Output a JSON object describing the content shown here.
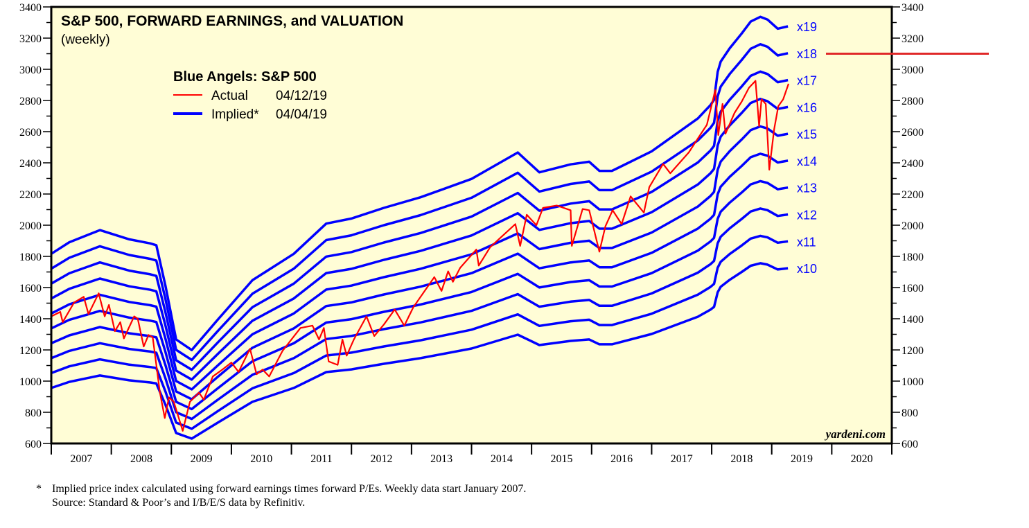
{
  "chart_data": {
    "type": "line",
    "title": "S&P 500, FORWARD EARNINGS, and VALUATION",
    "subtitle": "(weekly)",
    "legend": {
      "title": "Blue Angels: S&P 500",
      "placement": "top-left",
      "entries": [
        {
          "label": "Actual",
          "date": "04/12/19",
          "color": "#FF0000"
        },
        {
          "label": "Implied*",
          "date": "04/04/19",
          "color": "#0000FF"
        }
      ]
    },
    "x_tick_labels": [
      "2007",
      "2008",
      "2009",
      "2010",
      "2011",
      "2012",
      "2013",
      "2014",
      "2015",
      "2016",
      "2017",
      "2018",
      "2019",
      "2020"
    ],
    "xlim": [
      2007,
      2021
    ],
    "ylim": [
      600,
      3400
    ],
    "y_ticks": [
      600,
      800,
      1000,
      1200,
      1400,
      1600,
      1800,
      2000,
      2200,
      2400,
      2600,
      2800,
      3000,
      3200,
      3400
    ],
    "y_ticks_right": true,
    "grid": false,
    "implied": {
      "multiples": [
        10,
        11,
        12,
        13,
        14,
        15,
        16,
        17,
        18,
        19
      ],
      "multiple_labels": [
        "x10",
        "x11",
        "x12",
        "x13",
        "x14",
        "x15",
        "x16",
        "x17",
        "x18",
        "x19"
      ],
      "color": "#0000FF",
      "forward_earnings": {
        "x": [
          2007.0,
          2007.3,
          2007.81,
          2008.3,
          2008.65,
          2008.75,
          2008.9,
          2009.08,
          2009.34,
          2009.77,
          2010.35,
          2011.04,
          2011.58,
          2012.0,
          2012.54,
          2013.15,
          2014.0,
          2014.77,
          2015.13,
          2015.65,
          2015.96,
          2016.13,
          2016.34,
          2017.0,
          2017.77,
          2017.98,
          2018.04,
          2018.1,
          2018.15,
          2018.3,
          2018.5,
          2018.65,
          2018.81,
          2018.93,
          2019.1,
          2019.27
        ],
        "y": [
          95.6,
          99.5,
          103.6,
          100.5,
          99.1,
          98.5,
          85.0,
          66.7,
          63.1,
          73.3,
          86.7,
          95.6,
          105.8,
          107.5,
          111.1,
          114.7,
          120.9,
          129.8,
          123.1,
          125.8,
          126.7,
          123.6,
          123.6,
          130.2,
          141.3,
          145.8,
          147.6,
          157.0,
          160.5,
          165.0,
          170.0,
          174.0,
          175.6,
          174.7,
          171.6,
          172.4
        ]
      }
    },
    "actual": {
      "name": "Actual",
      "color": "#FF0000",
      "x": [
        2007.0,
        2007.15,
        2007.19,
        2007.38,
        2007.54,
        2007.62,
        2007.79,
        2007.89,
        2007.96,
        2008.06,
        2008.15,
        2008.21,
        2008.38,
        2008.44,
        2008.54,
        2008.62,
        2008.69,
        2008.81,
        2008.89,
        2008.96,
        2009.04,
        2009.19,
        2009.31,
        2009.46,
        2009.54,
        2009.69,
        2009.85,
        2010.0,
        2010.12,
        2010.31,
        2010.42,
        2010.52,
        2010.63,
        2010.85,
        2011.15,
        2011.35,
        2011.46,
        2011.54,
        2011.62,
        2011.77,
        2011.85,
        2011.92,
        2012.04,
        2012.25,
        2012.38,
        2012.54,
        2012.72,
        2012.88,
        2013.03,
        2013.38,
        2013.5,
        2013.61,
        2013.69,
        2013.81,
        2014.08,
        2014.12,
        2014.31,
        2014.73,
        2014.81,
        2014.92,
        2015.08,
        2015.19,
        2015.42,
        2015.65,
        2015.67,
        2015.85,
        2015.96,
        2016.13,
        2016.23,
        2016.35,
        2016.5,
        2016.65,
        2016.87,
        2016.96,
        2017.19,
        2017.31,
        2017.62,
        2017.77,
        2017.92,
        2018.06,
        2018.11,
        2018.18,
        2018.23,
        2018.38,
        2018.5,
        2018.62,
        2018.73,
        2018.77,
        2018.79,
        2018.83,
        2018.9,
        2018.96,
        2019.04,
        2019.11,
        2019.19,
        2019.28
      ],
      "y": [
        1415,
        1444,
        1378,
        1504,
        1541,
        1430,
        1563,
        1415,
        1489,
        1320,
        1378,
        1274,
        1415,
        1400,
        1222,
        1296,
        1281,
        926,
        763,
        896,
        867,
        681,
        867,
        926,
        881,
        1030,
        1074,
        1119,
        1059,
        1207,
        1044,
        1074,
        1030,
        1193,
        1341,
        1356,
        1267,
        1341,
        1126,
        1104,
        1267,
        1163,
        1267,
        1415,
        1289,
        1363,
        1459,
        1356,
        1474,
        1667,
        1578,
        1704,
        1637,
        1726,
        1844,
        1741,
        1859,
        2007,
        1867,
        2067,
        2000,
        2111,
        2126,
        2096,
        1867,
        2104,
        2096,
        1830,
        1993,
        2096,
        2007,
        2185,
        2081,
        2244,
        2393,
        2333,
        2467,
        2556,
        2644,
        2867,
        2578,
        2778,
        2587,
        2720,
        2793,
        2881,
        2926,
        2733,
        2636,
        2807,
        2778,
        2356,
        2615,
        2763,
        2807,
        2907
      ]
    },
    "reference_line": {
      "value": 3100,
      "color": "#E02828"
    },
    "watermark": "yardeni.com",
    "colors": {
      "plot_background": "#FFFDD6"
    }
  },
  "footnote": {
    "marker": "*",
    "line1": "Implied price index calculated using forward earnings times forward P/Es. Weekly data start January 2007.",
    "line2": "Source: Standard & Poor’s and I/B/E/S data by Refinitiv."
  }
}
